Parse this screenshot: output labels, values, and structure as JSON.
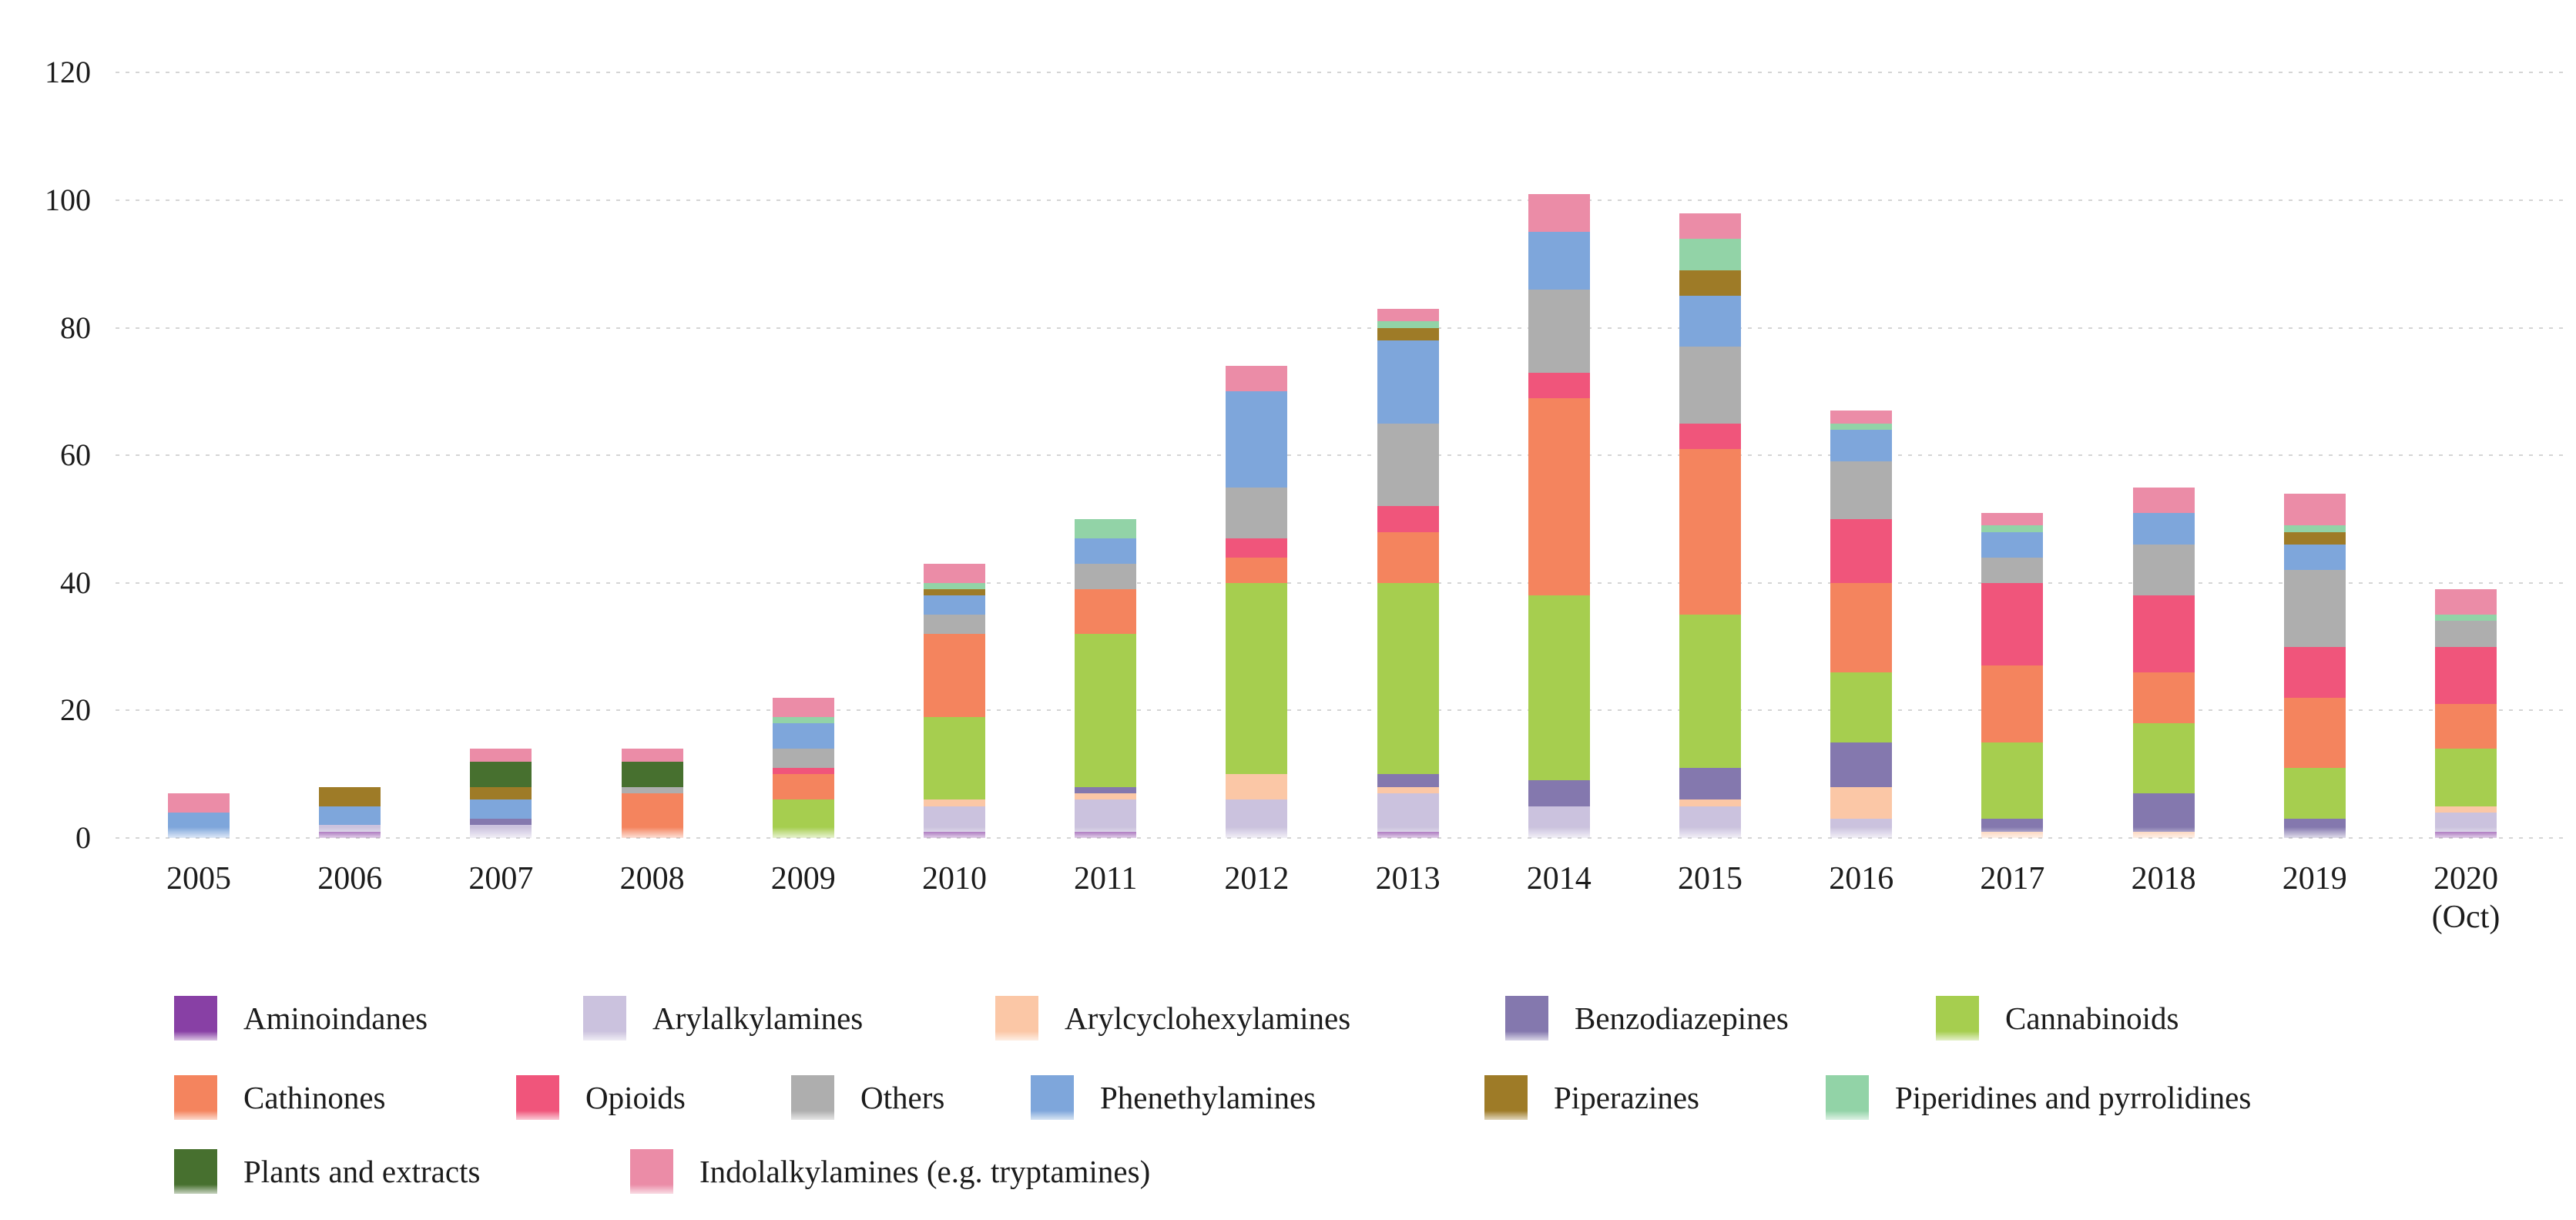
{
  "figure": {
    "background": "#ffffff"
  },
  "chart_data": {
    "type": "bar",
    "stacked": true,
    "title": "",
    "xlabel": "",
    "ylabel": "",
    "ylim": [
      0,
      120
    ],
    "y_ticks": [
      0,
      20,
      40,
      60,
      80,
      100,
      120
    ],
    "grid": "horizontal-dotted",
    "legend_position": "bottom",
    "categories": [
      "2005",
      "2006",
      "2007",
      "2008",
      "2009",
      "2010",
      "2011",
      "2012",
      "2013",
      "2014",
      "2015",
      "2016",
      "2017",
      "2018",
      "2019",
      "2020\n(Oct)"
    ],
    "series": [
      {
        "name": "Aminoindanes",
        "color": "#8840a5",
        "values": [
          0,
          1,
          0,
          0,
          0,
          1,
          1,
          0,
          1,
          0,
          0,
          0,
          0,
          0,
          0,
          1
        ]
      },
      {
        "name": "Arylalkylamines",
        "color": "#cbc2de",
        "values": [
          0,
          1,
          2,
          0,
          0,
          4,
          5,
          6,
          6,
          5,
          5,
          3,
          0,
          0,
          0,
          3
        ]
      },
      {
        "name": "Arylcyclohexylamines",
        "color": "#fbc7a6",
        "values": [
          0,
          0,
          0,
          0,
          0,
          1,
          1,
          4,
          1,
          0,
          1,
          5,
          1,
          1,
          0,
          1
        ]
      },
      {
        "name": "Benzodiazepines",
        "color": "#8478ae",
        "values": [
          0,
          0,
          1,
          0,
          0,
          0,
          1,
          0,
          2,
          4,
          5,
          7,
          2,
          6,
          3,
          0
        ]
      },
      {
        "name": "Cannabinoids",
        "color": "#a6ce4f",
        "values": [
          0,
          0,
          0,
          0,
          6,
          13,
          24,
          30,
          30,
          29,
          24,
          11,
          12,
          11,
          8,
          9
        ]
      },
      {
        "name": "Cathinones",
        "color": "#f4845e",
        "values": [
          0,
          0,
          0,
          7,
          4,
          13,
          7,
          4,
          8,
          31,
          26,
          14,
          12,
          8,
          11,
          7
        ]
      },
      {
        "name": "Opioids",
        "color": "#f0557b",
        "values": [
          0,
          0,
          0,
          0,
          1,
          0,
          0,
          3,
          4,
          4,
          4,
          10,
          13,
          12,
          8,
          9
        ]
      },
      {
        "name": "Others",
        "color": "#aeaeae",
        "values": [
          0,
          0,
          0,
          1,
          3,
          3,
          4,
          8,
          13,
          13,
          12,
          9,
          4,
          8,
          12,
          4
        ]
      },
      {
        "name": "Phenethylamines",
        "color": "#7ea6db",
        "values": [
          4,
          3,
          3,
          0,
          4,
          3,
          4,
          15,
          13,
          9,
          8,
          5,
          4,
          5,
          4,
          0
        ]
      },
      {
        "name": "Piperazines",
        "color": "#9e7b27",
        "values": [
          0,
          3,
          2,
          0,
          0,
          1,
          0,
          0,
          2,
          0,
          4,
          0,
          0,
          0,
          2,
          0
        ]
      },
      {
        "name": "Piperidines and pyrrolidines",
        "color": "#92d3a7",
        "values": [
          0,
          0,
          0,
          0,
          1,
          1,
          3,
          0,
          1,
          0,
          5,
          1,
          1,
          0,
          1,
          1
        ]
      },
      {
        "name": "Plants and extracts",
        "color": "#47702f",
        "values": [
          0,
          0,
          4,
          4,
          0,
          0,
          0,
          0,
          0,
          0,
          0,
          0,
          0,
          0,
          0,
          0
        ]
      },
      {
        "name": "Indolalkylamines (e.g. tryptamines)",
        "color": "#eb8ca7",
        "values": [
          3,
          0,
          2,
          2,
          3,
          3,
          0,
          4,
          2,
          6,
          4,
          2,
          2,
          4,
          5,
          4
        ]
      }
    ],
    "totals": [
      7,
      8,
      14,
      14,
      22,
      43,
      50,
      74,
      83,
      101,
      98,
      67,
      51,
      55,
      54,
      39
    ]
  },
  "legend": {
    "rows": [
      [
        "Aminoindanes",
        "Arylalkylamines",
        "Arylcyclohexylamines",
        "Benzodiazepines",
        "Cannabinoids"
      ],
      [
        "Cathinones",
        "Opioids",
        "Others",
        "Phenethylamines",
        "Piperazines",
        "Piperidines and pyrrolidines"
      ],
      [
        "Plants and extracts",
        "Indolalkylamines (e.g. tryptamines)"
      ]
    ]
  }
}
